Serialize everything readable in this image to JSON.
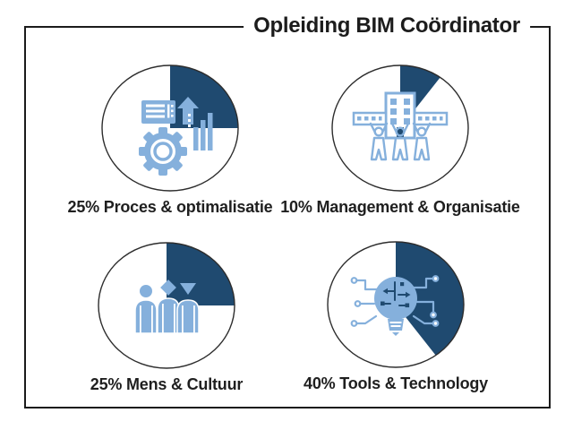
{
  "title": "Opleiding BIM Coördinator",
  "colors": {
    "dark_blue": "#1F4A70",
    "light_blue": "#85B0DC",
    "frame": "#1B1B1B",
    "text": "#1F1F1F"
  },
  "segments": [
    {
      "id": "proces",
      "percent": 25,
      "label": "25% Proces & optimalisatie",
      "icon": "gear-optimization-icon"
    },
    {
      "id": "management",
      "percent": 10,
      "label": "10% Management & Organisatie",
      "icon": "team-building-icon"
    },
    {
      "id": "mens",
      "percent": 25,
      "label": "25% Mens & Cultuur",
      "icon": "people-group-icon"
    },
    {
      "id": "tools",
      "percent": 40,
      "label": "40% Tools & Technology",
      "icon": "lightbulb-circuit-icon"
    }
  ],
  "chart_data": {
    "type": "pie",
    "title": "Opleiding BIM Coördinator",
    "unit": "%",
    "slices": [
      {
        "label": "Proces & optimalisatie",
        "value": 25
      },
      {
        "label": "Management & Organisatie",
        "value": 10
      },
      {
        "label": "Mens & Cultuur",
        "value": 25
      },
      {
        "label": "Tools & Technology",
        "value": 40
      }
    ],
    "layout": "four separate single-slice pies, each slice filled clockwise starting at 12 o'clock",
    "slice_color": "#1F4A70",
    "legend": "none",
    "labels_below_each_pie": true
  }
}
